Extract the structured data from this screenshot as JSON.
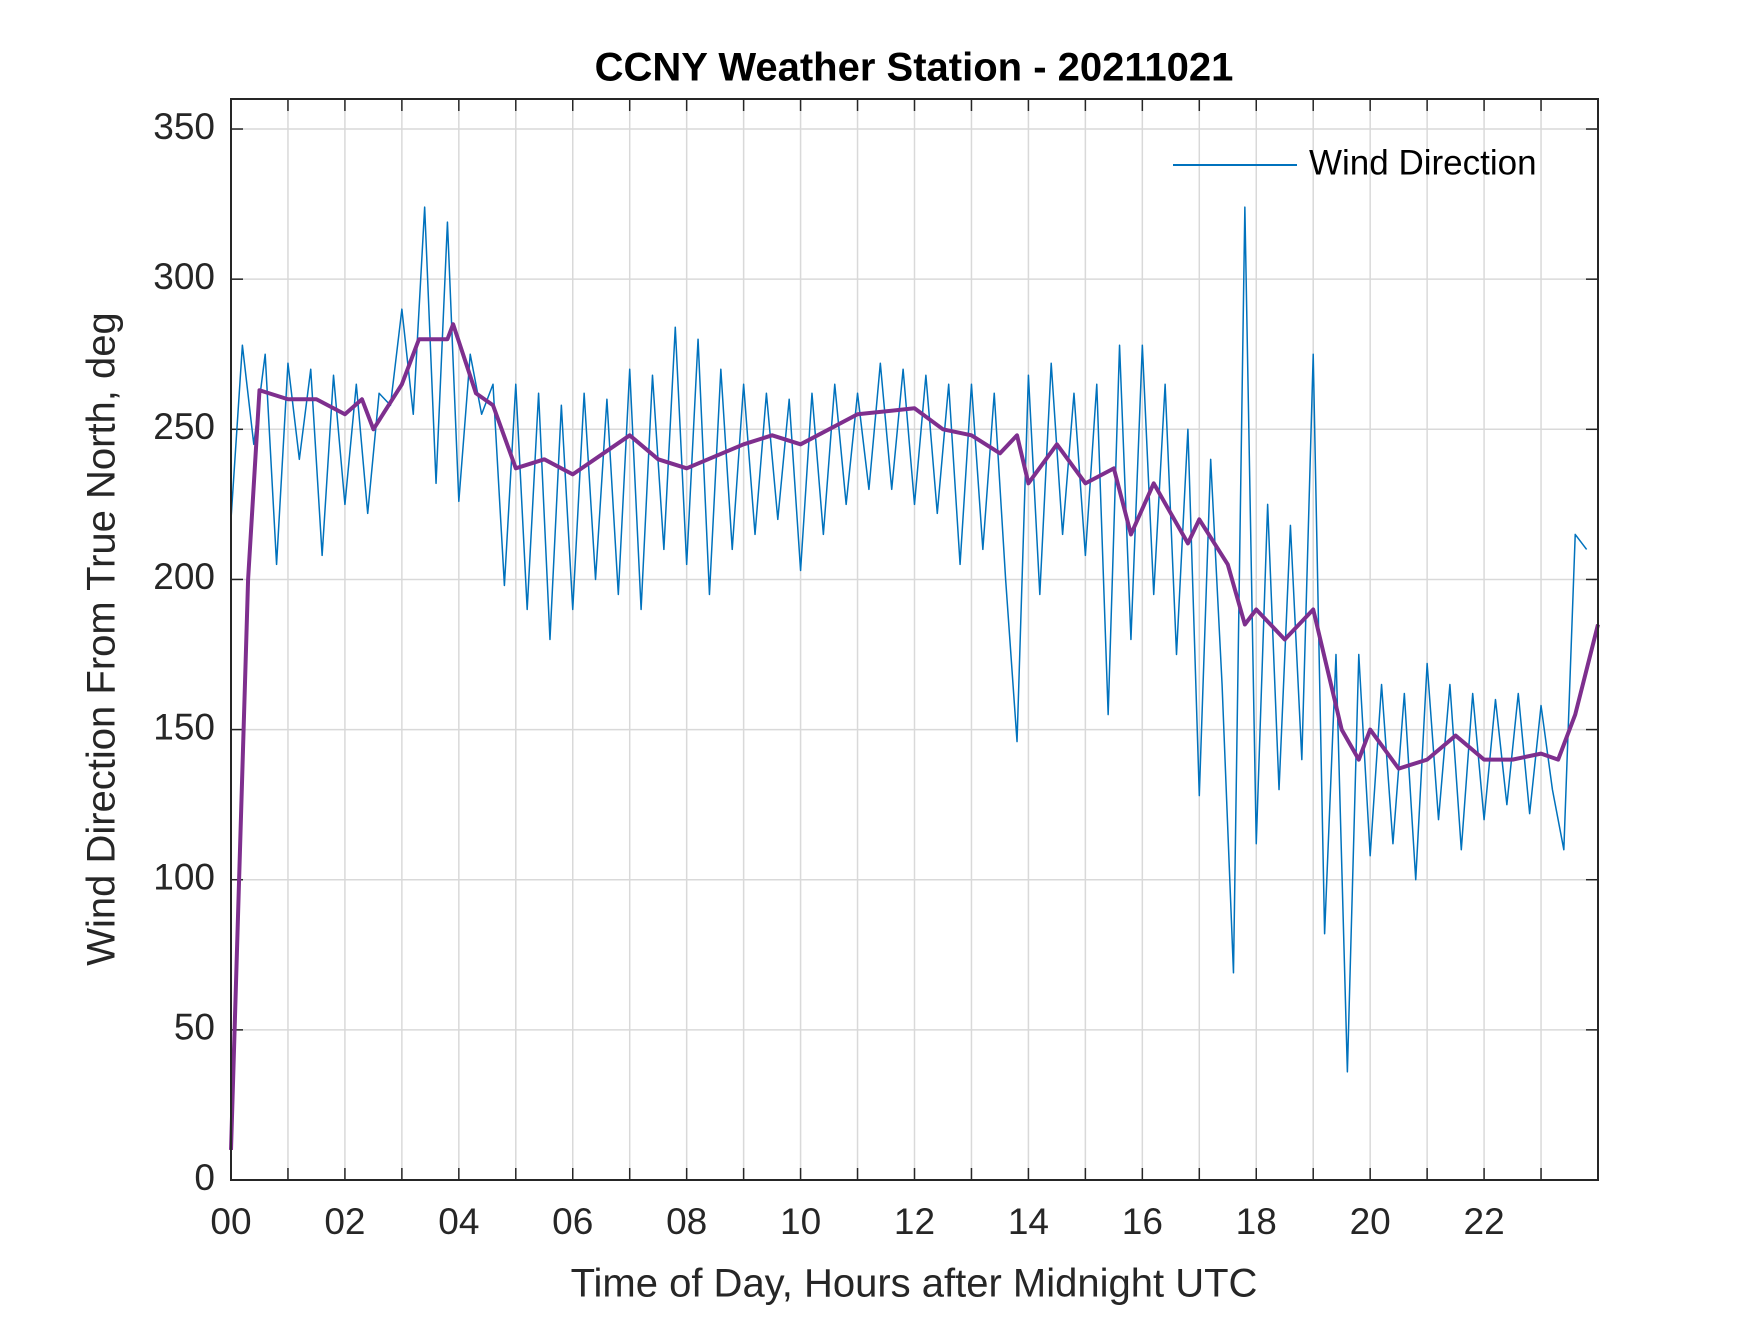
{
  "chart_data": {
    "type": "line",
    "title": "CCNY Weather Station - 20211021",
    "xlabel": "Time of Day, Hours after Midnight UTC",
    "ylabel": "Wind Direction From True North, deg",
    "xlim": [
      0,
      24
    ],
    "ylim": [
      0,
      360
    ],
    "xticks": [
      {
        "value": 0,
        "label": "00"
      },
      {
        "value": 2,
        "label": "02"
      },
      {
        "value": 4,
        "label": "04"
      },
      {
        "value": 6,
        "label": "06"
      },
      {
        "value": 8,
        "label": "08"
      },
      {
        "value": 10,
        "label": "10"
      },
      {
        "value": 12,
        "label": "12"
      },
      {
        "value": 14,
        "label": "14"
      },
      {
        "value": 16,
        "label": "16"
      },
      {
        "value": 18,
        "label": "18"
      },
      {
        "value": 20,
        "label": "20"
      },
      {
        "value": 22,
        "label": "22"
      }
    ],
    "xminorticks": [
      1,
      3,
      5,
      7,
      9,
      11,
      13,
      15,
      17,
      19,
      21,
      23
    ],
    "yticks": [
      0,
      50,
      100,
      150,
      200,
      250,
      300,
      350
    ],
    "grid": true,
    "legend": "top-right",
    "series": [
      {
        "name": "Wind Direction",
        "color": "#0072bd",
        "x": [
          0,
          0.2,
          0.4,
          0.6,
          0.8,
          1,
          1.2,
          1.4,
          1.6,
          1.8,
          2,
          2.2,
          2.4,
          2.6,
          2.8,
          3,
          3.2,
          3.4,
          3.6,
          3.8,
          4,
          4.2,
          4.4,
          4.6,
          4.8,
          5,
          5.2,
          5.4,
          5.6,
          5.8,
          6,
          6.2,
          6.4,
          6.6,
          6.8,
          7,
          7.2,
          7.4,
          7.6,
          7.8,
          8,
          8.2,
          8.4,
          8.6,
          8.8,
          9,
          9.2,
          9.4,
          9.6,
          9.8,
          10,
          10.2,
          10.4,
          10.6,
          10.8,
          11,
          11.2,
          11.4,
          11.6,
          11.8,
          12,
          12.2,
          12.4,
          12.6,
          12.8,
          13,
          13.2,
          13.4,
          13.6,
          13.8,
          14,
          14.2,
          14.4,
          14.6,
          14.8,
          15,
          15.2,
          15.4,
          15.6,
          15.8,
          16,
          16.2,
          16.4,
          16.6,
          16.8,
          17,
          17.2,
          17.4,
          17.6,
          17.8,
          18,
          18.2,
          18.4,
          18.6,
          18.8,
          19,
          19.2,
          19.4,
          19.6,
          19.8,
          20,
          20.2,
          20.4,
          20.6,
          20.8,
          21,
          21.2,
          21.4,
          21.6,
          21.8,
          22,
          22.2,
          22.4,
          22.6,
          22.8,
          23,
          23.2,
          23.4,
          23.6,
          23.8
        ],
        "values": [
          220,
          278,
          245,
          275,
          205,
          272,
          240,
          270,
          208,
          268,
          225,
          265,
          222,
          262,
          258,
          290,
          255,
          324,
          232,
          319,
          226,
          275,
          255,
          265,
          198,
          265,
          190,
          262,
          180,
          258,
          190,
          262,
          200,
          260,
          195,
          270,
          190,
          268,
          210,
          284,
          205,
          280,
          195,
          270,
          210,
          265,
          215,
          262,
          220,
          260,
          203,
          262,
          215,
          265,
          225,
          262,
          230,
          272,
          230,
          270,
          225,
          268,
          222,
          265,
          205,
          265,
          210,
          262,
          200,
          146,
          268,
          195,
          272,
          215,
          262,
          208,
          265,
          155,
          278,
          180,
          278,
          195,
          265,
          175,
          250,
          128,
          240,
          165,
          69,
          324,
          112,
          225,
          130,
          218,
          140,
          275,
          82,
          175,
          36,
          175,
          108,
          165,
          112,
          162,
          100,
          172,
          120,
          165,
          110,
          162,
          120,
          160,
          125,
          162,
          122,
          158,
          130,
          110,
          215,
          210
        ]
      },
      {
        "color": "#7e2f8e",
        "x": [
          0,
          0.3,
          0.5,
          1,
          1.5,
          2,
          2.3,
          2.5,
          3,
          3.3,
          3.8,
          3.9,
          4.3,
          4.6,
          5,
          5.5,
          6,
          7,
          7.5,
          8,
          9,
          9.5,
          10,
          11,
          12,
          12.5,
          13,
          13.5,
          13.8,
          14,
          14.5,
          15,
          15.5,
          15.8,
          16.2,
          16.8,
          17,
          17.5,
          17.8,
          18,
          18.5,
          19,
          19.5,
          19.8,
          20,
          20.5,
          21,
          21.5,
          22,
          22.5,
          23,
          23.3,
          23.6,
          24
        ],
        "values": [
          10,
          200,
          263,
          260,
          260,
          255,
          260,
          250,
          265,
          280,
          280,
          285,
          262,
          258,
          237,
          240,
          235,
          248,
          240,
          237,
          245,
          248,
          245,
          255,
          257,
          250,
          248,
          242,
          248,
          232,
          245,
          232,
          237,
          215,
          232,
          212,
          220,
          205,
          185,
          190,
          180,
          190,
          150,
          140,
          150,
          137,
          140,
          148,
          140,
          140,
          142,
          140,
          155,
          185
        ]
      }
    ]
  }
}
